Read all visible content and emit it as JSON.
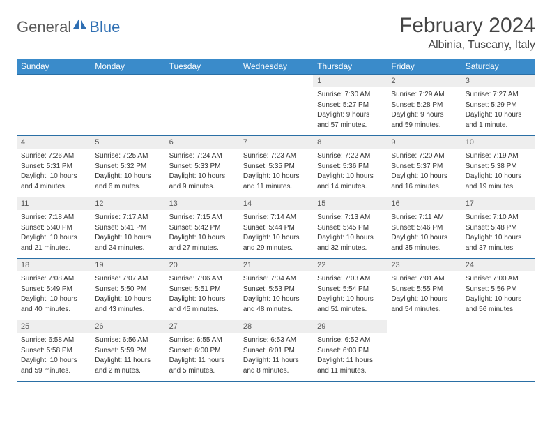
{
  "brand": {
    "part1": "General",
    "part2": "Blue"
  },
  "title": "February 2024",
  "location": "Albinia, Tuscany, Italy",
  "day_headers": [
    "Sunday",
    "Monday",
    "Tuesday",
    "Wednesday",
    "Thursday",
    "Friday",
    "Saturday"
  ],
  "colors": {
    "header_bg": "#3a8bca",
    "header_text": "#ffffff",
    "rule": "#2a6fa5",
    "daynum_bg": "#eeeeee",
    "logo_blue": "#2f6fb3",
    "logo_gray": "#5a5a5a"
  },
  "weeks": [
    [
      null,
      null,
      null,
      null,
      {
        "n": "1",
        "sr": "Sunrise: 7:30 AM",
        "ss": "Sunset: 5:27 PM",
        "d1": "Daylight: 9 hours",
        "d2": "and 57 minutes."
      },
      {
        "n": "2",
        "sr": "Sunrise: 7:29 AM",
        "ss": "Sunset: 5:28 PM",
        "d1": "Daylight: 9 hours",
        "d2": "and 59 minutes."
      },
      {
        "n": "3",
        "sr": "Sunrise: 7:27 AM",
        "ss": "Sunset: 5:29 PM",
        "d1": "Daylight: 10 hours",
        "d2": "and 1 minute."
      }
    ],
    [
      {
        "n": "4",
        "sr": "Sunrise: 7:26 AM",
        "ss": "Sunset: 5:31 PM",
        "d1": "Daylight: 10 hours",
        "d2": "and 4 minutes."
      },
      {
        "n": "5",
        "sr": "Sunrise: 7:25 AM",
        "ss": "Sunset: 5:32 PM",
        "d1": "Daylight: 10 hours",
        "d2": "and 6 minutes."
      },
      {
        "n": "6",
        "sr": "Sunrise: 7:24 AM",
        "ss": "Sunset: 5:33 PM",
        "d1": "Daylight: 10 hours",
        "d2": "and 9 minutes."
      },
      {
        "n": "7",
        "sr": "Sunrise: 7:23 AM",
        "ss": "Sunset: 5:35 PM",
        "d1": "Daylight: 10 hours",
        "d2": "and 11 minutes."
      },
      {
        "n": "8",
        "sr": "Sunrise: 7:22 AM",
        "ss": "Sunset: 5:36 PM",
        "d1": "Daylight: 10 hours",
        "d2": "and 14 minutes."
      },
      {
        "n": "9",
        "sr": "Sunrise: 7:20 AM",
        "ss": "Sunset: 5:37 PM",
        "d1": "Daylight: 10 hours",
        "d2": "and 16 minutes."
      },
      {
        "n": "10",
        "sr": "Sunrise: 7:19 AM",
        "ss": "Sunset: 5:38 PM",
        "d1": "Daylight: 10 hours",
        "d2": "and 19 minutes."
      }
    ],
    [
      {
        "n": "11",
        "sr": "Sunrise: 7:18 AM",
        "ss": "Sunset: 5:40 PM",
        "d1": "Daylight: 10 hours",
        "d2": "and 21 minutes."
      },
      {
        "n": "12",
        "sr": "Sunrise: 7:17 AM",
        "ss": "Sunset: 5:41 PM",
        "d1": "Daylight: 10 hours",
        "d2": "and 24 minutes."
      },
      {
        "n": "13",
        "sr": "Sunrise: 7:15 AM",
        "ss": "Sunset: 5:42 PM",
        "d1": "Daylight: 10 hours",
        "d2": "and 27 minutes."
      },
      {
        "n": "14",
        "sr": "Sunrise: 7:14 AM",
        "ss": "Sunset: 5:44 PM",
        "d1": "Daylight: 10 hours",
        "d2": "and 29 minutes."
      },
      {
        "n": "15",
        "sr": "Sunrise: 7:13 AM",
        "ss": "Sunset: 5:45 PM",
        "d1": "Daylight: 10 hours",
        "d2": "and 32 minutes."
      },
      {
        "n": "16",
        "sr": "Sunrise: 7:11 AM",
        "ss": "Sunset: 5:46 PM",
        "d1": "Daylight: 10 hours",
        "d2": "and 35 minutes."
      },
      {
        "n": "17",
        "sr": "Sunrise: 7:10 AM",
        "ss": "Sunset: 5:48 PM",
        "d1": "Daylight: 10 hours",
        "d2": "and 37 minutes."
      }
    ],
    [
      {
        "n": "18",
        "sr": "Sunrise: 7:08 AM",
        "ss": "Sunset: 5:49 PM",
        "d1": "Daylight: 10 hours",
        "d2": "and 40 minutes."
      },
      {
        "n": "19",
        "sr": "Sunrise: 7:07 AM",
        "ss": "Sunset: 5:50 PM",
        "d1": "Daylight: 10 hours",
        "d2": "and 43 minutes."
      },
      {
        "n": "20",
        "sr": "Sunrise: 7:06 AM",
        "ss": "Sunset: 5:51 PM",
        "d1": "Daylight: 10 hours",
        "d2": "and 45 minutes."
      },
      {
        "n": "21",
        "sr": "Sunrise: 7:04 AM",
        "ss": "Sunset: 5:53 PM",
        "d1": "Daylight: 10 hours",
        "d2": "and 48 minutes."
      },
      {
        "n": "22",
        "sr": "Sunrise: 7:03 AM",
        "ss": "Sunset: 5:54 PM",
        "d1": "Daylight: 10 hours",
        "d2": "and 51 minutes."
      },
      {
        "n": "23",
        "sr": "Sunrise: 7:01 AM",
        "ss": "Sunset: 5:55 PM",
        "d1": "Daylight: 10 hours",
        "d2": "and 54 minutes."
      },
      {
        "n": "24",
        "sr": "Sunrise: 7:00 AM",
        "ss": "Sunset: 5:56 PM",
        "d1": "Daylight: 10 hours",
        "d2": "and 56 minutes."
      }
    ],
    [
      {
        "n": "25",
        "sr": "Sunrise: 6:58 AM",
        "ss": "Sunset: 5:58 PM",
        "d1": "Daylight: 10 hours",
        "d2": "and 59 minutes."
      },
      {
        "n": "26",
        "sr": "Sunrise: 6:56 AM",
        "ss": "Sunset: 5:59 PM",
        "d1": "Daylight: 11 hours",
        "d2": "and 2 minutes."
      },
      {
        "n": "27",
        "sr": "Sunrise: 6:55 AM",
        "ss": "Sunset: 6:00 PM",
        "d1": "Daylight: 11 hours",
        "d2": "and 5 minutes."
      },
      {
        "n": "28",
        "sr": "Sunrise: 6:53 AM",
        "ss": "Sunset: 6:01 PM",
        "d1": "Daylight: 11 hours",
        "d2": "and 8 minutes."
      },
      {
        "n": "29",
        "sr": "Sunrise: 6:52 AM",
        "ss": "Sunset: 6:03 PM",
        "d1": "Daylight: 11 hours",
        "d2": "and 11 minutes."
      },
      null,
      null
    ]
  ]
}
